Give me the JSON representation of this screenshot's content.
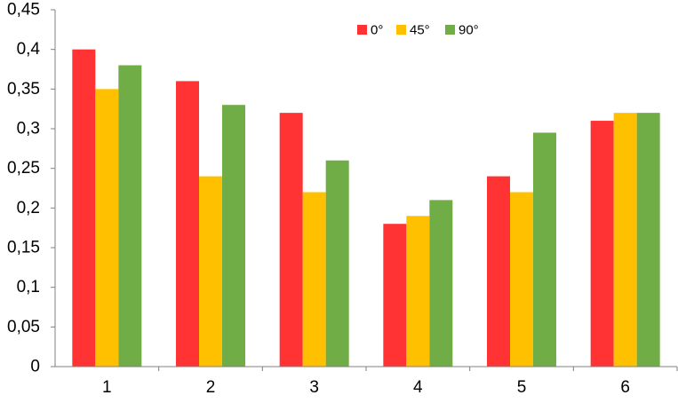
{
  "chart_data": {
    "type": "bar",
    "categories": [
      "1",
      "2",
      "3",
      "4",
      "5",
      "6"
    ],
    "series": [
      {
        "name": "0°",
        "color": "#ff3333",
        "values": [
          0.4,
          0.36,
          0.32,
          0.18,
          0.24,
          0.31
        ]
      },
      {
        "name": "45°",
        "color": "#ffc000",
        "values": [
          0.35,
          0.24,
          0.22,
          0.19,
          0.22,
          0.32
        ]
      },
      {
        "name": "90°",
        "color": "#70ad47",
        "values": [
          0.38,
          0.33,
          0.26,
          0.21,
          0.295,
          0.32
        ]
      }
    ],
    "ylim": [
      0,
      0.45
    ],
    "y_ticks": [
      "0",
      "0,05",
      "0,1",
      "0,15",
      "0,2",
      "0,25",
      "0,3",
      "0,35",
      "0,4",
      "0,45"
    ],
    "grid": false,
    "legend_position": "top-right"
  }
}
